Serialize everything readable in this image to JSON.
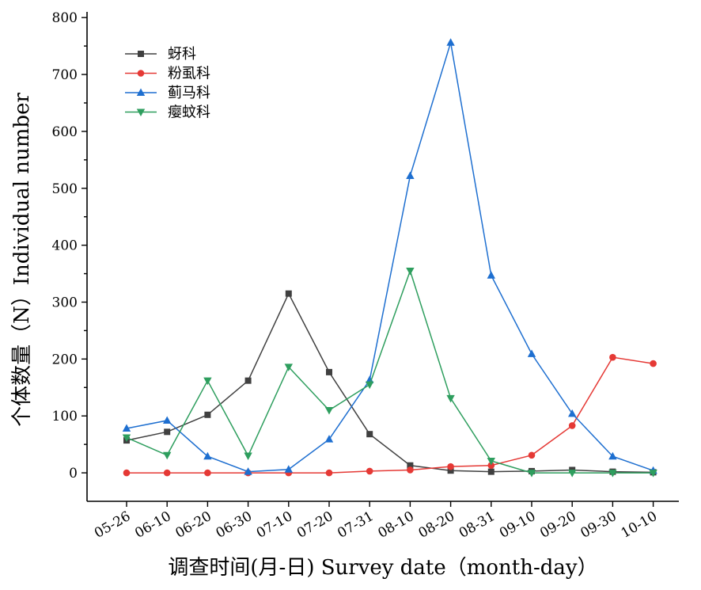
{
  "chart_data": {
    "type": "line",
    "xlabel": "调查时间(月-日) Survey date（month-day）",
    "ylabel": "个体数量（N）Individual number",
    "ylim": [
      -50,
      810
    ],
    "yticks": [
      0,
      100,
      200,
      300,
      400,
      500,
      600,
      700,
      800
    ],
    "categories": [
      "05-26",
      "06-10",
      "06-20",
      "06-30",
      "07-10",
      "07-20",
      "07-31",
      "08-10",
      "08-20",
      "08-31",
      "09-10",
      "09-20",
      "09-30",
      "10-10"
    ],
    "legend_position": "top-left",
    "grid": false,
    "series": [
      {
        "name": "蚜科",
        "color": "#404040",
        "marker": "square",
        "values": [
          57,
          72,
          102,
          162,
          315,
          177,
          68,
          13,
          4,
          2,
          3,
          5,
          2,
          1
        ]
      },
      {
        "name": "粉虱科",
        "color": "#e53935",
        "marker": "circle",
        "values": [
          0,
          0,
          0,
          0,
          0,
          0,
          3,
          5,
          11,
          13,
          31,
          83,
          203,
          192
        ]
      },
      {
        "name": "蓟马科",
        "color": "#1e6fd0",
        "marker": "triangle-up",
        "values": [
          78,
          92,
          29,
          2,
          6,
          59,
          163,
          522,
          756,
          347,
          209,
          104,
          29,
          4
        ]
      },
      {
        "name": "瘿蚊科",
        "color": "#2e9e5e",
        "marker": "triangle-down",
        "values": [
          62,
          31,
          162,
          30,
          186,
          110,
          155,
          355,
          131,
          21,
          0,
          0,
          0,
          0
        ]
      }
    ]
  }
}
